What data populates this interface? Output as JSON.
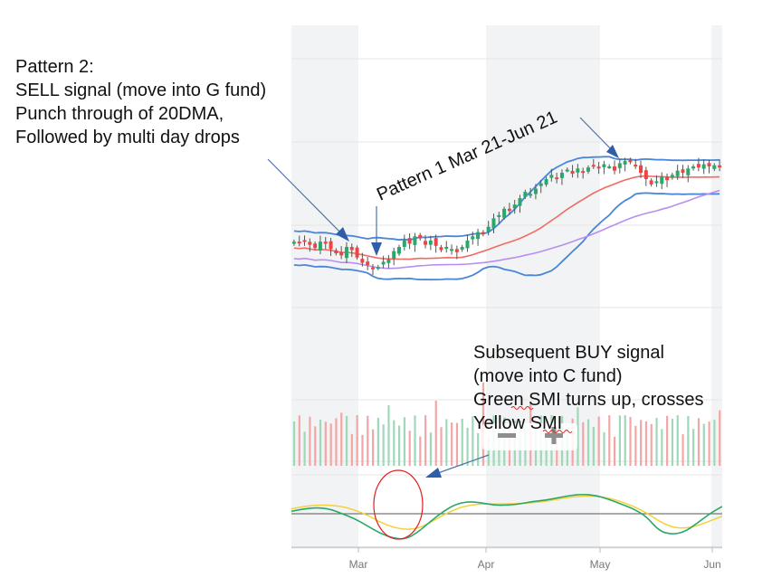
{
  "annotations": {
    "pattern2": [
      "Pattern 2:",
      "SELL signal (move into G fund)",
      "Punch through of 20DMA,",
      "Followed by multi day drops"
    ],
    "pattern1": "Pattern 1 Mar 21-Jun 21",
    "buy": [
      "Subsequent BUY signal",
      "(move into C fund)",
      "Green SMI turns up, crosses",
      "Yellow SMI"
    ]
  },
  "zoom": {
    "minus_icon": "minus-icon",
    "plus_icon": "plus-icon"
  },
  "chart_data": {
    "type": "candlestick",
    "x_ticks": [
      "Mar",
      "Apr",
      "May",
      "Jun"
    ],
    "colors": {
      "up": "#27a96b",
      "down": "#ef4444",
      "bollinger": "#4a86d8",
      "ma20": "#f26a63",
      "ma50": "#b98ef0",
      "smi": "#2aa86a",
      "smi_signal": "#f3d03c",
      "zero_line": "#777777",
      "shade": "#f1f3f4",
      "annotation_arrow": "#4e72aa",
      "highlight_circle": "#e02020"
    },
    "overlays": [
      "Bollinger Bands",
      "20-day moving average",
      "50-day moving average",
      "volume",
      "SMI",
      "SMI signal"
    ],
    "closes": [
      0.55,
      0.54,
      0.56,
      0.52,
      0.49,
      0.55,
      0.53,
      0.48,
      0.44,
      0.42,
      0.5,
      0.47,
      0.4,
      0.35,
      0.33,
      0.3,
      0.31,
      0.36,
      0.38,
      0.46,
      0.5,
      0.56,
      0.53,
      0.6,
      0.58,
      0.52,
      0.56,
      0.51,
      0.47,
      0.5,
      0.48,
      0.45,
      0.5,
      0.56,
      0.6,
      0.64,
      0.62,
      0.69,
      0.77,
      0.8,
      0.86,
      0.84,
      0.9,
      0.96,
      1.02,
      1.0,
      1.05,
      1.1,
      1.14,
      1.18,
      1.15,
      1.2,
      1.23,
      1.19,
      1.24,
      1.21,
      1.25,
      1.27,
      1.24,
      1.28,
      1.26,
      1.22,
      1.29,
      1.31,
      1.3,
      1.27,
      1.2,
      1.14,
      1.09,
      1.12,
      1.16,
      1.13,
      1.18,
      1.22,
      1.2,
      1.24,
      1.26,
      1.25,
      1.28,
      1.26,
      1.27,
      1.25
    ],
    "smi": [
      0.1,
      0.2,
      0.25,
      0.2,
      0.0,
      -0.2,
      -0.5,
      -0.8,
      -1.0,
      -1.05,
      -0.75,
      -0.3,
      0.1,
      0.4,
      0.5,
      0.45,
      0.35,
      0.35,
      0.4,
      0.5,
      0.55,
      0.65,
      0.75,
      0.8,
      0.75,
      0.6,
      0.4,
      0.2,
      -0.1,
      -0.7,
      -0.85,
      -0.75,
      -0.4,
      0.0,
      0.3
    ],
    "smi_signal": [
      0.2,
      0.3,
      0.35,
      0.35,
      0.3,
      0.15,
      -0.05,
      -0.35,
      -0.55,
      -0.65,
      -0.6,
      -0.35,
      -0.05,
      0.2,
      0.35,
      0.4,
      0.4,
      0.4,
      0.42,
      0.45,
      0.5,
      0.6,
      0.68,
      0.72,
      0.72,
      0.65,
      0.5,
      0.3,
      0.05,
      -0.3,
      -0.55,
      -0.6,
      -0.5,
      -0.3,
      -0.1
    ]
  }
}
